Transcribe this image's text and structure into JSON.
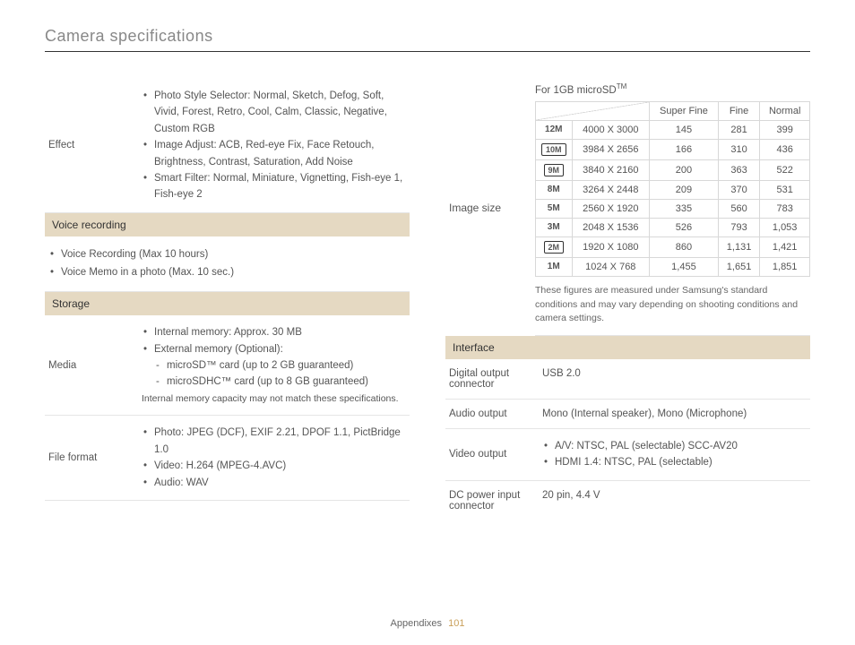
{
  "page_title": "Camera specifications",
  "footer": {
    "label": "Appendixes",
    "page": "101"
  },
  "colors": {
    "section_header_bg": "#e5d9c2",
    "border": "#e5e5e5",
    "text": "#555555",
    "title_text": "#888888",
    "page_num": "#c9a05a"
  },
  "left": {
    "effect": {
      "label": "Effect",
      "items": [
        "Photo Style Selector: Normal, Sketch, Defog, Soft, Vivid, Forest, Retro, Cool, Calm, Classic, Negative, Custom RGB",
        "Image Adjust: ACB, Red-eye Fix, Face Retouch, Brightness, Contrast, Saturation, Add Noise",
        "Smart Filter: Normal, Miniature, Vignetting, Fish-eye 1, Fish-eye 2"
      ]
    },
    "voice_header": "Voice recording",
    "voice_items": [
      "Voice Recording (Max 10 hours)",
      "Voice Memo in a photo (Max. 10 sec.)"
    ],
    "storage_header": "Storage",
    "media": {
      "label": "Media",
      "items": [
        "Internal memory: Approx. 30 MB",
        "External memory (Optional):"
      ],
      "sub_items": [
        "microSD™ card (up to 2 GB guaranteed)",
        "microSDHC™ card (up to 8 GB guaranteed)"
      ],
      "note": "Internal memory capacity may not match these specifications."
    },
    "file_format": {
      "label": "File format",
      "items": [
        "Photo: JPEG (DCF), EXIF 2.21, DPOF 1.1, PictBridge 1.0",
        "Video: H.264 (MPEG-4.AVC)",
        "Audio: WAV"
      ]
    }
  },
  "right": {
    "image_size": {
      "label": "Image size",
      "caption_prefix": "For 1GB microSD",
      "caption_tm": "TM",
      "headers": [
        "",
        "",
        "Super Fine",
        "Fine",
        "Normal"
      ],
      "rows": [
        {
          "icon_style": "plain",
          "icon": "12M",
          "res": "4000 X 3000",
          "sf": "145",
          "f": "281",
          "n": "399"
        },
        {
          "icon_style": "box",
          "icon": "10M",
          "res": "3984 X 2656",
          "sf": "166",
          "f": "310",
          "n": "436"
        },
        {
          "icon_style": "box",
          "icon": "9M",
          "res": "3840 X 2160",
          "sf": "200",
          "f": "363",
          "n": "522"
        },
        {
          "icon_style": "plain",
          "icon": "8M",
          "res": "3264 X 2448",
          "sf": "209",
          "f": "370",
          "n": "531"
        },
        {
          "icon_style": "plain",
          "icon": "5M",
          "res": "2560 X 1920",
          "sf": "335",
          "f": "560",
          "n": "783"
        },
        {
          "icon_style": "plain",
          "icon": "3M",
          "res": "2048 X 1536",
          "sf": "526",
          "f": "793",
          "n": "1,053"
        },
        {
          "icon_style": "box",
          "icon": "2M",
          "res": "1920 X 1080",
          "sf": "860",
          "f": "1,131",
          "n": "1,421"
        },
        {
          "icon_style": "plain",
          "icon": "1M",
          "res": "1024 X 768",
          "sf": "1,455",
          "f": "1,651",
          "n": "1,851"
        }
      ],
      "footnote": "These figures are measured under Samsung's standard conditions and may vary depending on shooting conditions and camera settings."
    },
    "interface_header": "Interface",
    "interface_rows": [
      {
        "label": "Digital output connector",
        "type": "text",
        "value": "USB 2.0"
      },
      {
        "label": "Audio output",
        "type": "text",
        "value": "Mono (Internal speaker), Mono (Microphone)"
      },
      {
        "label": "Video output",
        "type": "list",
        "items": [
          "A/V: NTSC, PAL (selectable) SCC-AV20",
          "HDMI 1.4: NTSC, PAL (selectable)"
        ]
      },
      {
        "label": "DC power input connector",
        "type": "text",
        "value": "20 pin, 4.4 V"
      }
    ]
  }
}
